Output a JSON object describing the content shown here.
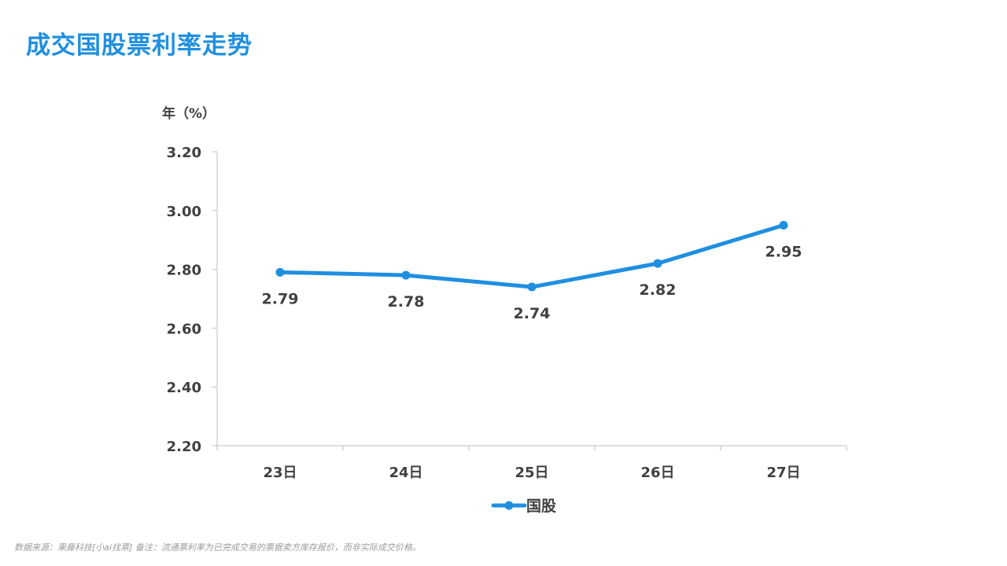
{
  "page": {
    "title": "成交国股票利率走势",
    "footer": "数据来源：果藤科技[小ai找票] 备注：流通票利率为已完成交易的票据卖方库存报价，而非实际成交价格。"
  },
  "colors": {
    "accent": "#1F8FE0",
    "series_line": "#1F8FE0",
    "axis_text": "#404040",
    "footer_text": "#9a9a9a"
  },
  "chart_data": {
    "type": "line",
    "title": "",
    "ylabel": "年（%）",
    "xlabel": "",
    "categories": [
      "23日",
      "24日",
      "25日",
      "26日",
      "27日"
    ],
    "y_ticks": [
      "3.20",
      "3.00",
      "2.80",
      "2.60",
      "2.40",
      "2.20"
    ],
    "ylim": [
      2.2,
      3.2
    ],
    "grid": false,
    "legend_position": "bottom",
    "series": [
      {
        "name": "国股",
        "values": [
          2.79,
          2.78,
          2.74,
          2.82,
          2.95
        ],
        "data_labels": [
          "2.79",
          "2.78",
          "2.74",
          "2.82",
          "2.95"
        ]
      }
    ]
  }
}
